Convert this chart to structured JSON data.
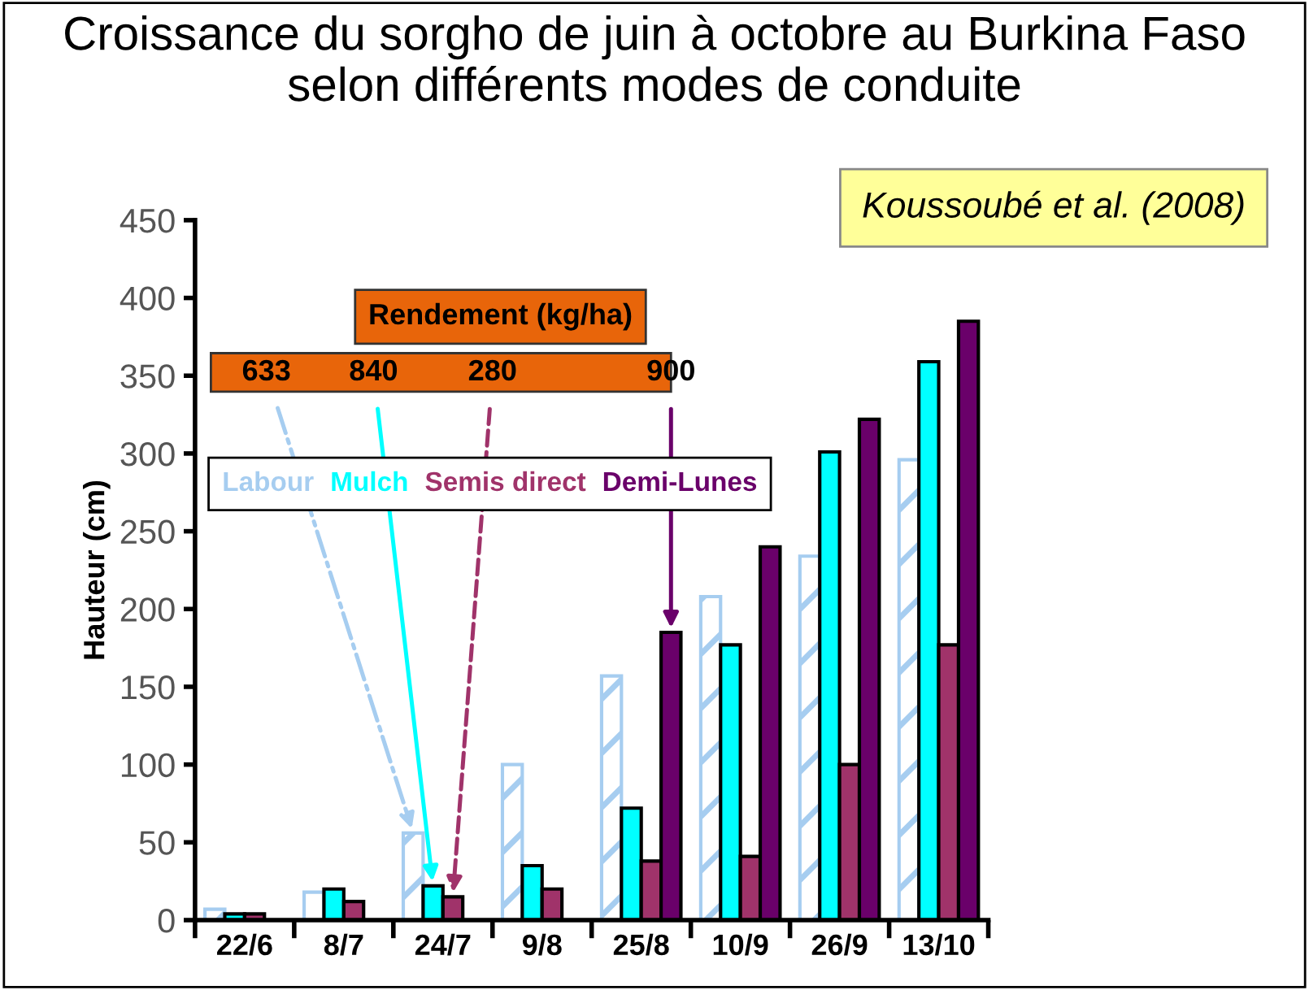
{
  "chart_data": {
    "type": "bar",
    "title": "Croissance du sorgho de juin à octobre au Burkina Faso\nselon différents modes de conduite",
    "ylabel": "Hauteur (cm)",
    "categories": [
      "22/6",
      "8/7",
      "24/7",
      "9/8",
      "25/8",
      "10/9",
      "26/9",
      "13/10"
    ],
    "series": [
      {
        "name": "Labour",
        "color": "#a6cdf0",
        "values": [
          7,
          18,
          56,
          100,
          157,
          208,
          234,
          296
        ]
      },
      {
        "name": "Mulch",
        "color": "#00ffff",
        "values": [
          4,
          20,
          22,
          35,
          72,
          177,
          301,
          359
        ]
      },
      {
        "name": "Semis direct",
        "color": "#a0336a",
        "values": [
          4,
          12,
          15,
          20,
          38,
          41,
          100,
          177
        ]
      },
      {
        "name": "Demi-Lunes",
        "color": "#6a006a",
        "values": [
          null,
          null,
          null,
          null,
          185,
          240,
          322,
          385
        ]
      }
    ],
    "ylim": [
      0,
      450
    ],
    "yticks": [
      0,
      50,
      100,
      150,
      200,
      250,
      300,
      350,
      400,
      450
    ],
    "grid": false,
    "legend": "top left",
    "annotations": [
      "Koussoubé et al. (2008)",
      "Rendement (kg/ha)",
      "633",
      "840",
      "280",
      "900"
    ]
  }
}
